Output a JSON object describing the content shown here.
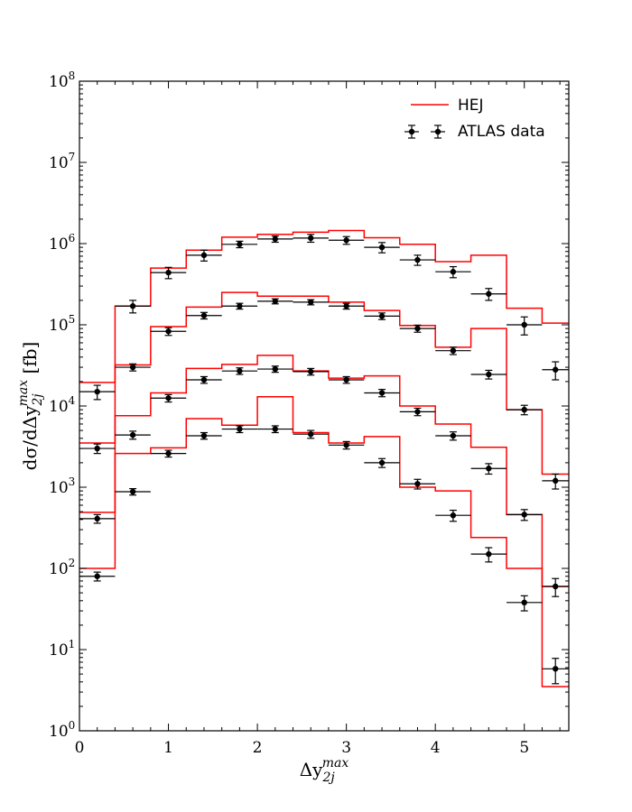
{
  "chart_data": {
    "type": "step-line-with-errorbars",
    "xlabel": "Δy_2j^max",
    "ylabel": "dσ/dΔy_2j^max [fb]",
    "xlim": [
      0,
      5.5
    ],
    "ylim": [
      1,
      100000000
    ],
    "yscale": "log",
    "grid": false,
    "legend": {
      "placement": "top-right",
      "entries": [
        "HEJ",
        "ATLAS data"
      ]
    },
    "x_ticks": [
      "0",
      "1",
      "2",
      "3",
      "4",
      "5"
    ],
    "y_ticks": [
      {
        "base": "10",
        "exp": "0"
      },
      {
        "base": "10",
        "exp": "1"
      },
      {
        "base": "10",
        "exp": "2"
      },
      {
        "base": "10",
        "exp": "3"
      },
      {
        "base": "10",
        "exp": "4"
      },
      {
        "base": "10",
        "exp": "5"
      },
      {
        "base": "10",
        "exp": "6"
      },
      {
        "base": "10",
        "exp": "7"
      },
      {
        "base": "10",
        "exp": "8"
      }
    ],
    "colors": {
      "hej": "#ff0000",
      "data": "#000000"
    },
    "bin_edges": [
      0,
      0.4,
      0.8,
      1.2,
      1.6,
      2.0,
      2.4,
      2.8,
      3.2,
      3.6,
      4.0,
      4.4,
      4.8,
      5.2,
      5.5
    ],
    "series": [
      {
        "hej": [
          19500,
          170000,
          500000,
          830000,
          1200000,
          1300000,
          1380000,
          1450000,
          1180000,
          980000,
          600000,
          720000,
          160000,
          105000
        ],
        "data": [
          15000,
          170000,
          440000,
          720000,
          980000,
          1140000,
          1170000,
          1100000,
          900000,
          630000,
          450000,
          240000,
          100000,
          28000
        ],
        "err": [
          3000,
          30000,
          70000,
          110000,
          90000,
          100000,
          130000,
          120000,
          130000,
          90000,
          70000,
          40000,
          25000,
          7000
        ]
      },
      {
        "hej": [
          3500,
          32000,
          95000,
          165000,
          250000,
          225000,
          225000,
          190000,
          150000,
          98000,
          53000,
          90000,
          9000,
          1450
        ],
        "data": [
          3000,
          30000,
          83000,
          130000,
          170000,
          195000,
          190000,
          170000,
          128000,
          90000,
          48000,
          24500,
          9000,
          1200
        ],
        "err": [
          400,
          3000,
          9000,
          12000,
          14000,
          14000,
          14000,
          14000,
          12000,
          9000,
          5000,
          3000,
          1200,
          250
        ]
      },
      {
        "hej": [
          490,
          7600,
          14500,
          29000,
          32500,
          42000,
          27000,
          22000,
          23500,
          10000,
          6000,
          3100,
          460,
          60
        ],
        "data": [
          410,
          4400,
          12500,
          21000,
          27000,
          28500,
          26500,
          21000,
          14500,
          8500,
          4300,
          1700,
          460,
          60
        ],
        "err": [
          50,
          500,
          1300,
          2000,
          2500,
          2500,
          2500,
          2000,
          1500,
          900,
          500,
          250,
          70,
          15
        ]
      },
      {
        "hej": [
          100,
          2600,
          3050,
          7000,
          5800,
          13000,
          4700,
          3500,
          4200,
          1000,
          900,
          240,
          100,
          3.5
        ],
        "data": [
          80,
          880,
          2600,
          4300,
          5200,
          5200,
          4500,
          3300,
          2000,
          1100,
          450,
          150,
          38,
          5.8
        ],
        "err": [
          10,
          80,
          250,
          400,
          500,
          500,
          500,
          350,
          250,
          150,
          70,
          30,
          8,
          2
        ]
      }
    ]
  }
}
